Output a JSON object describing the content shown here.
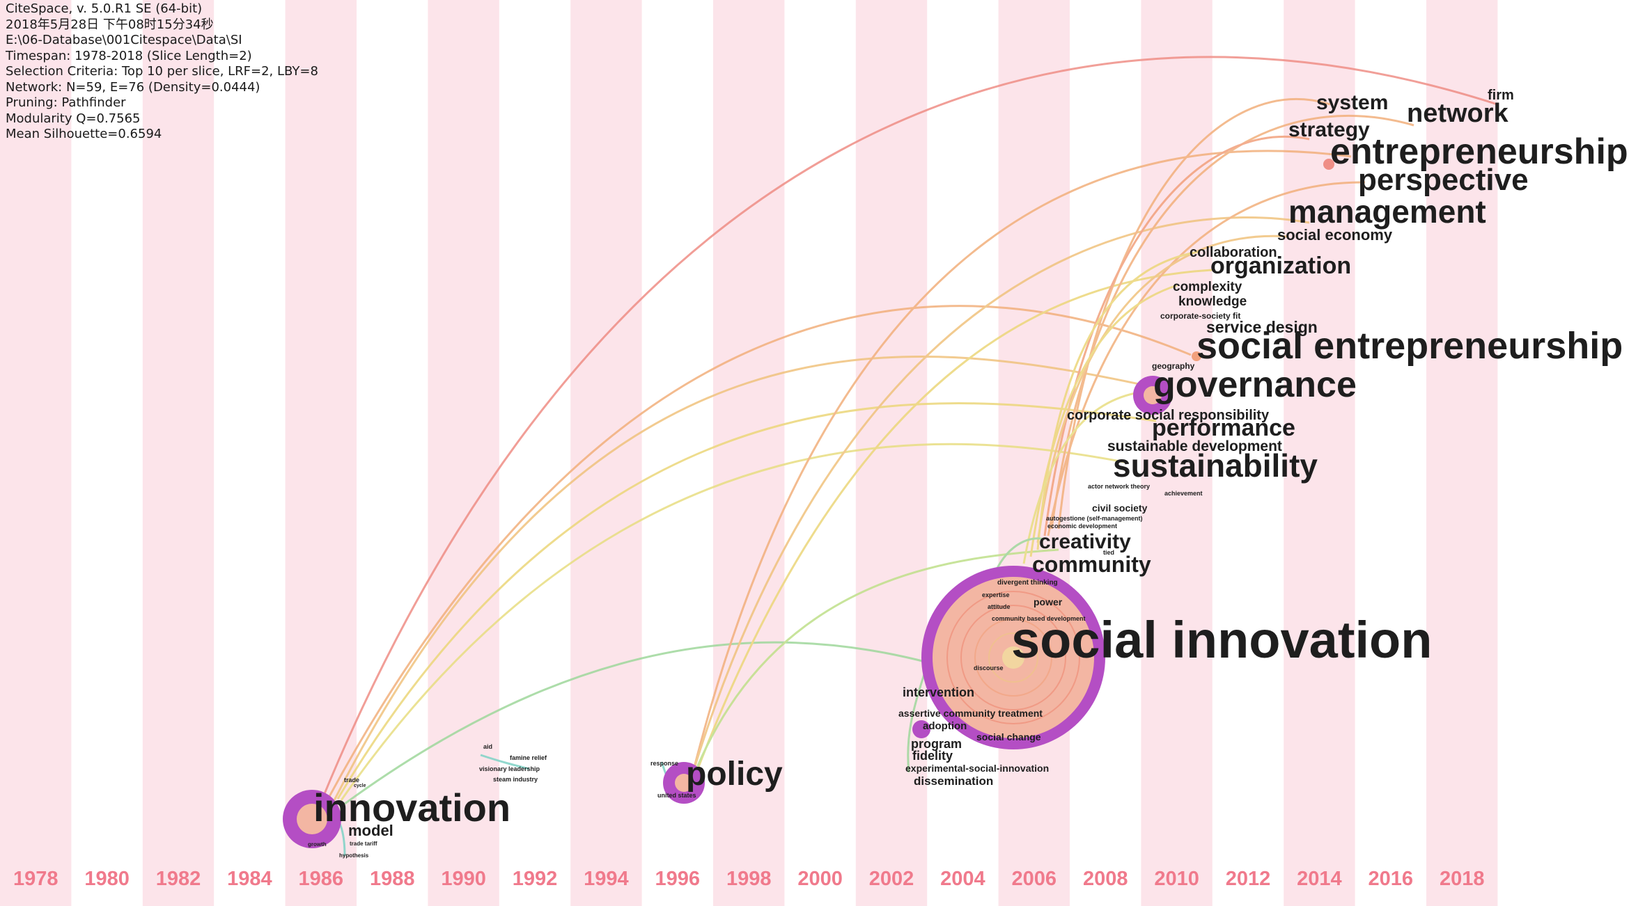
{
  "info_lines": [
    "CiteSpace, v. 5.0.R1 SE (64-bit)",
    "2018年5月28日 下午08时15分34秒",
    "E:\\06-Database\\001Citespace\\Data\\SI",
    "Timespan: 1978-2018 (Slice Length=2)",
    "Selection Criteria: Top 10 per slice, LRF=2, LBY=8",
    "Network: N=59, E=76 (Density=0.0444)",
    "Pruning: Pathfinder",
    "Modularity Q=0.7565",
    "Mean Silhouette=0.6594"
  ],
  "years": [
    "1978",
    "1980",
    "1982",
    "1984",
    "1986",
    "1988",
    "1990",
    "1992",
    "1994",
    "1996",
    "1998",
    "2000",
    "2002",
    "2004",
    "2006",
    "2008",
    "2010",
    "2012",
    "2014",
    "2016",
    "2018"
  ],
  "colors": {
    "stripe": "#fce4ea",
    "year_label": "#f07a8c",
    "node_ring": "#b44ec4",
    "node_core": "#f3b6a3",
    "link_early": "#9fd89c",
    "link_mid": "#ecd77a",
    "link_late": "#f2b07c",
    "link_latest": "#ef8e86"
  },
  "keywords": {
    "firm": "firm",
    "system": "system",
    "network": "network",
    "strategy": "strategy",
    "entrepreneurship": "entrepreneurship",
    "perspective": "perspective",
    "management": "management",
    "social_economy": "social economy",
    "collaboration": "collaboration",
    "organization": "organization",
    "complexity": "complexity",
    "knowledge": "knowledge",
    "corporate_society_fit": "corporate-society fit",
    "service_design": "service design",
    "social_entrepreneurship": "social entrepreneurship",
    "geography": "geography",
    "governance": "governance",
    "corporate_social_responsibility": "corporate social responsibility",
    "performance": "performance",
    "sustainable_development": "sustainable development",
    "sustainability": "sustainability",
    "actor_network_theory": "actor network theory",
    "achievement": "achievement",
    "civil_society": "civil society",
    "autogestione": "autogestione (self-management)",
    "economic_development": "economic development",
    "creativity": "creativity",
    "community": "community",
    "tied": "tied",
    "divergent_thinking": "divergent thinking",
    "expertise": "expertise",
    "attitude": "attitude",
    "power": "power",
    "community_based_development": "community based development",
    "social_innovation": "social innovation",
    "discourse": "discourse",
    "intervention": "intervention",
    "assertive_community_treatment": "assertive community treatment",
    "adoption": "adoption",
    "social_change": "social change",
    "program": "program",
    "fidelity": "fidelity",
    "experimental_social_innovation": "experimental-social-innovation",
    "dissemination": "dissemination",
    "policy": "policy",
    "response": "response",
    "united_states": "united states",
    "aid": "aid",
    "famine_relief": "famine relief",
    "visionary_leadership": "visionary leadership",
    "steam_industry": "steam industry",
    "innovation": "innovation",
    "model": "model",
    "trade": "trade",
    "cycle": "cycle",
    "growth": "growth",
    "trade_tariff": "trade tariff",
    "hypothesis": "hypothesis"
  }
}
